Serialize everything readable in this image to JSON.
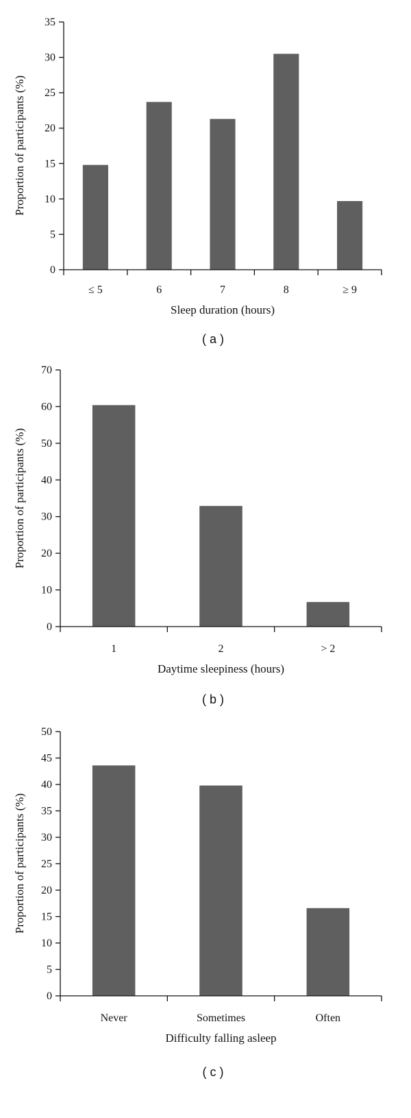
{
  "chart_data": [
    {
      "type": "bar",
      "panel_label": "( a )",
      "categories": [
        "≤ 5",
        "6",
        "7",
        "8",
        "≥ 9"
      ],
      "values": [
        14.8,
        23.7,
        21.3,
        30.5,
        9.7
      ],
      "xlabel": "Sleep duration (hours)",
      "ylabel": "Proportion of participants (%)",
      "ylim": [
        0,
        35
      ],
      "yticks": [
        0,
        5,
        10,
        15,
        20,
        25,
        30,
        35
      ],
      "grid": false,
      "bar_color": "#5f5f5f"
    },
    {
      "type": "bar",
      "panel_label": "( b )",
      "categories": [
        "1",
        "2",
        "> 2"
      ],
      "values": [
        60.4,
        32.9,
        6.7
      ],
      "xlabel": "Daytime sleepiness (hours)",
      "ylabel": "Proportion of participants (%)",
      "ylim": [
        0,
        70
      ],
      "yticks": [
        0,
        10,
        20,
        30,
        40,
        50,
        60,
        70
      ],
      "grid": false,
      "bar_color": "#5f5f5f"
    },
    {
      "type": "bar",
      "panel_label": "( c )",
      "categories": [
        "Never",
        "Sometimes",
        "Often"
      ],
      "values": [
        43.6,
        39.8,
        16.6
      ],
      "xlabel": "Difficulty falling asleep",
      "ylabel": "Proportion of participants (%)",
      "ylim": [
        0,
        50
      ],
      "yticks": [
        0,
        5,
        10,
        15,
        20,
        25,
        30,
        35,
        40,
        45,
        50
      ],
      "grid": false,
      "bar_color": "#5f5f5f"
    }
  ]
}
